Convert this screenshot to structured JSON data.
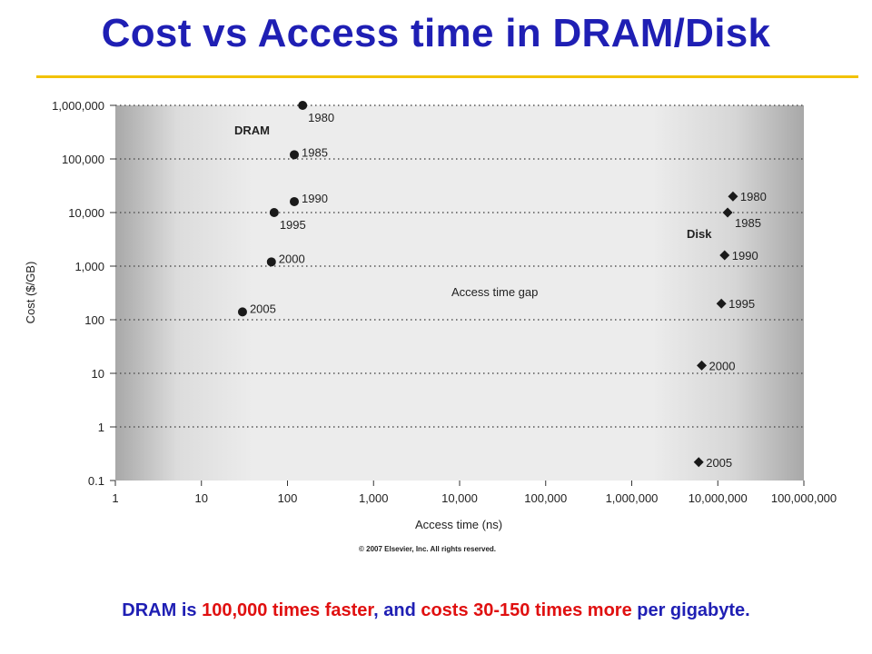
{
  "slide": {
    "title": "Cost vs Access time in DRAM/Disk"
  },
  "caption": {
    "part1": "DRAM is ",
    "part2": "100,000 times faster",
    "part3": ", and ",
    "part4": "costs 30-150 times more",
    "part5": " per gigabyte."
  },
  "colors": {
    "title": "#1f1fb4",
    "highlight": "#e01010",
    "rule": "#f2c200"
  },
  "chart_data": {
    "type": "scatter",
    "xlabel": "Access time (ns)",
    "ylabel": "Cost ($/GB)",
    "x_scale": "log",
    "y_scale": "log",
    "xlim": [
      1,
      100000000
    ],
    "ylim": [
      0.1,
      1000000
    ],
    "xticks": [
      "1",
      "10",
      "100",
      "1,000",
      "10,000",
      "100,000",
      "1,000,000",
      "10,000,000",
      "100,000,000"
    ],
    "yticks": [
      "0.1",
      "1",
      "10",
      "100",
      "1,000",
      "10,000",
      "100,000",
      "1,000,000"
    ],
    "grid": "horizontal dotted",
    "series": [
      {
        "name": "DRAM",
        "marker": "circle",
        "points": [
          {
            "year": "1980",
            "x": 150,
            "y": 1000000
          },
          {
            "year": "1985",
            "x": 120,
            "y": 120000
          },
          {
            "year": "1990",
            "x": 120,
            "y": 16000
          },
          {
            "year": "1995",
            "x": 70,
            "y": 10000
          },
          {
            "year": "2000",
            "x": 65,
            "y": 1200
          },
          {
            "year": "2005",
            "x": 30,
            "y": 140
          }
        ]
      },
      {
        "name": "Disk",
        "marker": "diamond",
        "points": [
          {
            "year": "1980",
            "x": 15000000,
            "y": 20000
          },
          {
            "year": "1985",
            "x": 13000000,
            "y": 10000
          },
          {
            "year": "1990",
            "x": 12000000,
            "y": 1600
          },
          {
            "year": "1995",
            "x": 11000000,
            "y": 200
          },
          {
            "year": "2000",
            "x": 6500000,
            "y": 14
          },
          {
            "year": "2005",
            "x": 6000000,
            "y": 0.22
          }
        ]
      }
    ],
    "annotations": [
      "Access time gap"
    ],
    "copyright": "© 2007 Elsevier, Inc. All rights reserved."
  }
}
